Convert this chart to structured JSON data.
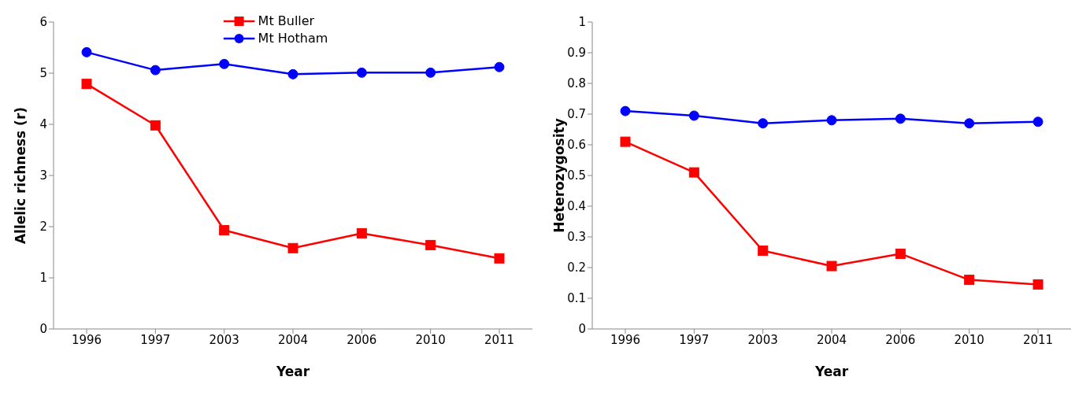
{
  "chart_data": [
    {
      "type": "line",
      "xlabel": "Year",
      "ylabel": "Allelic richness (r)",
      "categories": [
        "1996",
        "1997",
        "2003",
        "2004",
        "2006",
        "2010",
        "2011"
      ],
      "ylim": [
        0,
        6
      ],
      "yticks": [
        0,
        1,
        2,
        3,
        4,
        5,
        6
      ],
      "grid": false,
      "legend": "top",
      "line_style": "solid",
      "series": [
        {
          "name": "Mt Buller",
          "color": "#ff0000",
          "marker": "square",
          "values": [
            4.79,
            3.98,
            1.93,
            1.58,
            1.87,
            1.64,
            1.38
          ]
        },
        {
          "name": "Mt Hotham",
          "color": "#0000ff",
          "marker": "circle",
          "values": [
            5.41,
            5.06,
            5.18,
            4.98,
            5.01,
            5.01,
            5.12
          ]
        }
      ]
    },
    {
      "type": "line",
      "xlabel": "Year",
      "ylabel": "Heterozygosity",
      "categories": [
        "1996",
        "1997",
        "2003",
        "2004",
        "2006",
        "2010",
        "2011"
      ],
      "ylim": [
        0,
        1
      ],
      "yticks": [
        0,
        0.1,
        0.2,
        0.3,
        0.4,
        0.5,
        0.6,
        0.7,
        0.8,
        0.9,
        1
      ],
      "grid": false,
      "line_style": "solid",
      "series": [
        {
          "color": "#ff0000",
          "marker": "square",
          "values": [
            0.61,
            0.51,
            0.255,
            0.205,
            0.245,
            0.16,
            0.145
          ]
        },
        {
          "color": "#0000ff",
          "marker": "circle",
          "values": [
            0.71,
            0.695,
            0.67,
            0.68,
            0.685,
            0.67,
            0.675
          ]
        }
      ]
    }
  ]
}
